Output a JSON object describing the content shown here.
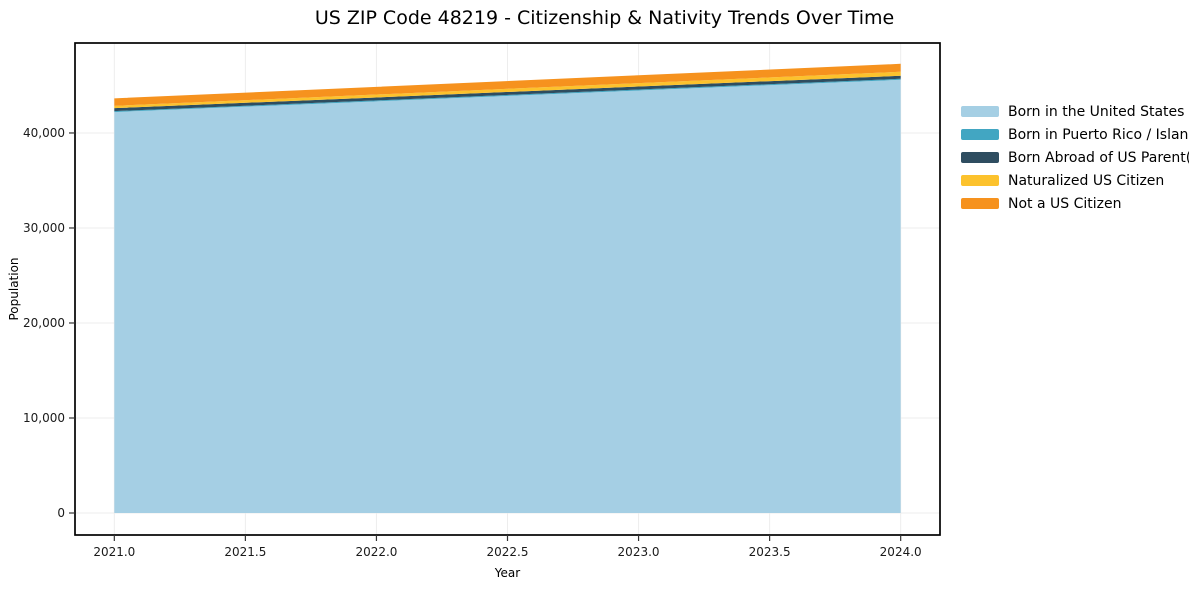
{
  "title": "US ZIP Code 48219 - Citizenship & Nativity Trends Over Time",
  "chart_data": {
    "type": "area",
    "stacked": true,
    "title": "US ZIP Code 48219 - Citizenship & Nativity Trends Over Time",
    "xlabel": "Year",
    "ylabel": "Population",
    "x": [
      2021,
      2022,
      2023,
      2024
    ],
    "series": [
      {
        "name": "Born in the United States",
        "color": "#a5cfe4",
        "values": [
          42200,
          43330,
          44470,
          45600
        ]
      },
      {
        "name": "Born in Puerto Rico / Islands",
        "color": "#42a6c2",
        "values": [
          100,
          100,
          105,
          105
        ]
      },
      {
        "name": "Born Abroad of US Parent(s)",
        "color": "#2e4d60",
        "values": [
          310,
          310,
          315,
          315
        ]
      },
      {
        "name": "Naturalized US Citizen",
        "color": "#fcc22d",
        "values": [
          245,
          305,
          360,
          420
        ]
      },
      {
        "name": "Not a US Citizen",
        "color": "#f6921e",
        "values": [
          790,
          807,
          823,
          840
        ]
      }
    ],
    "xlim": [
      2020.85,
      2024.15
    ],
    "ylim": [
      -2315,
      49470
    ],
    "x_ticks": [
      2021.0,
      2021.5,
      2022.0,
      2022.5,
      2023.0,
      2023.5,
      2024.0
    ],
    "x_tick_labels": [
      "2021.0",
      "2021.5",
      "2022.0",
      "2022.5",
      "2023.0",
      "2023.5",
      "2024.0"
    ],
    "y_ticks": [
      0,
      10000,
      20000,
      30000,
      40000
    ],
    "y_tick_labels": [
      "0",
      "10,000",
      "20,000",
      "30,000",
      "40,000"
    ],
    "grid": true,
    "grid_color": "#ededed",
    "spine_color": "#000000",
    "tick_color": "#333333",
    "tick_label_color": "#1a1a1a",
    "legend_position": "right-outside"
  }
}
